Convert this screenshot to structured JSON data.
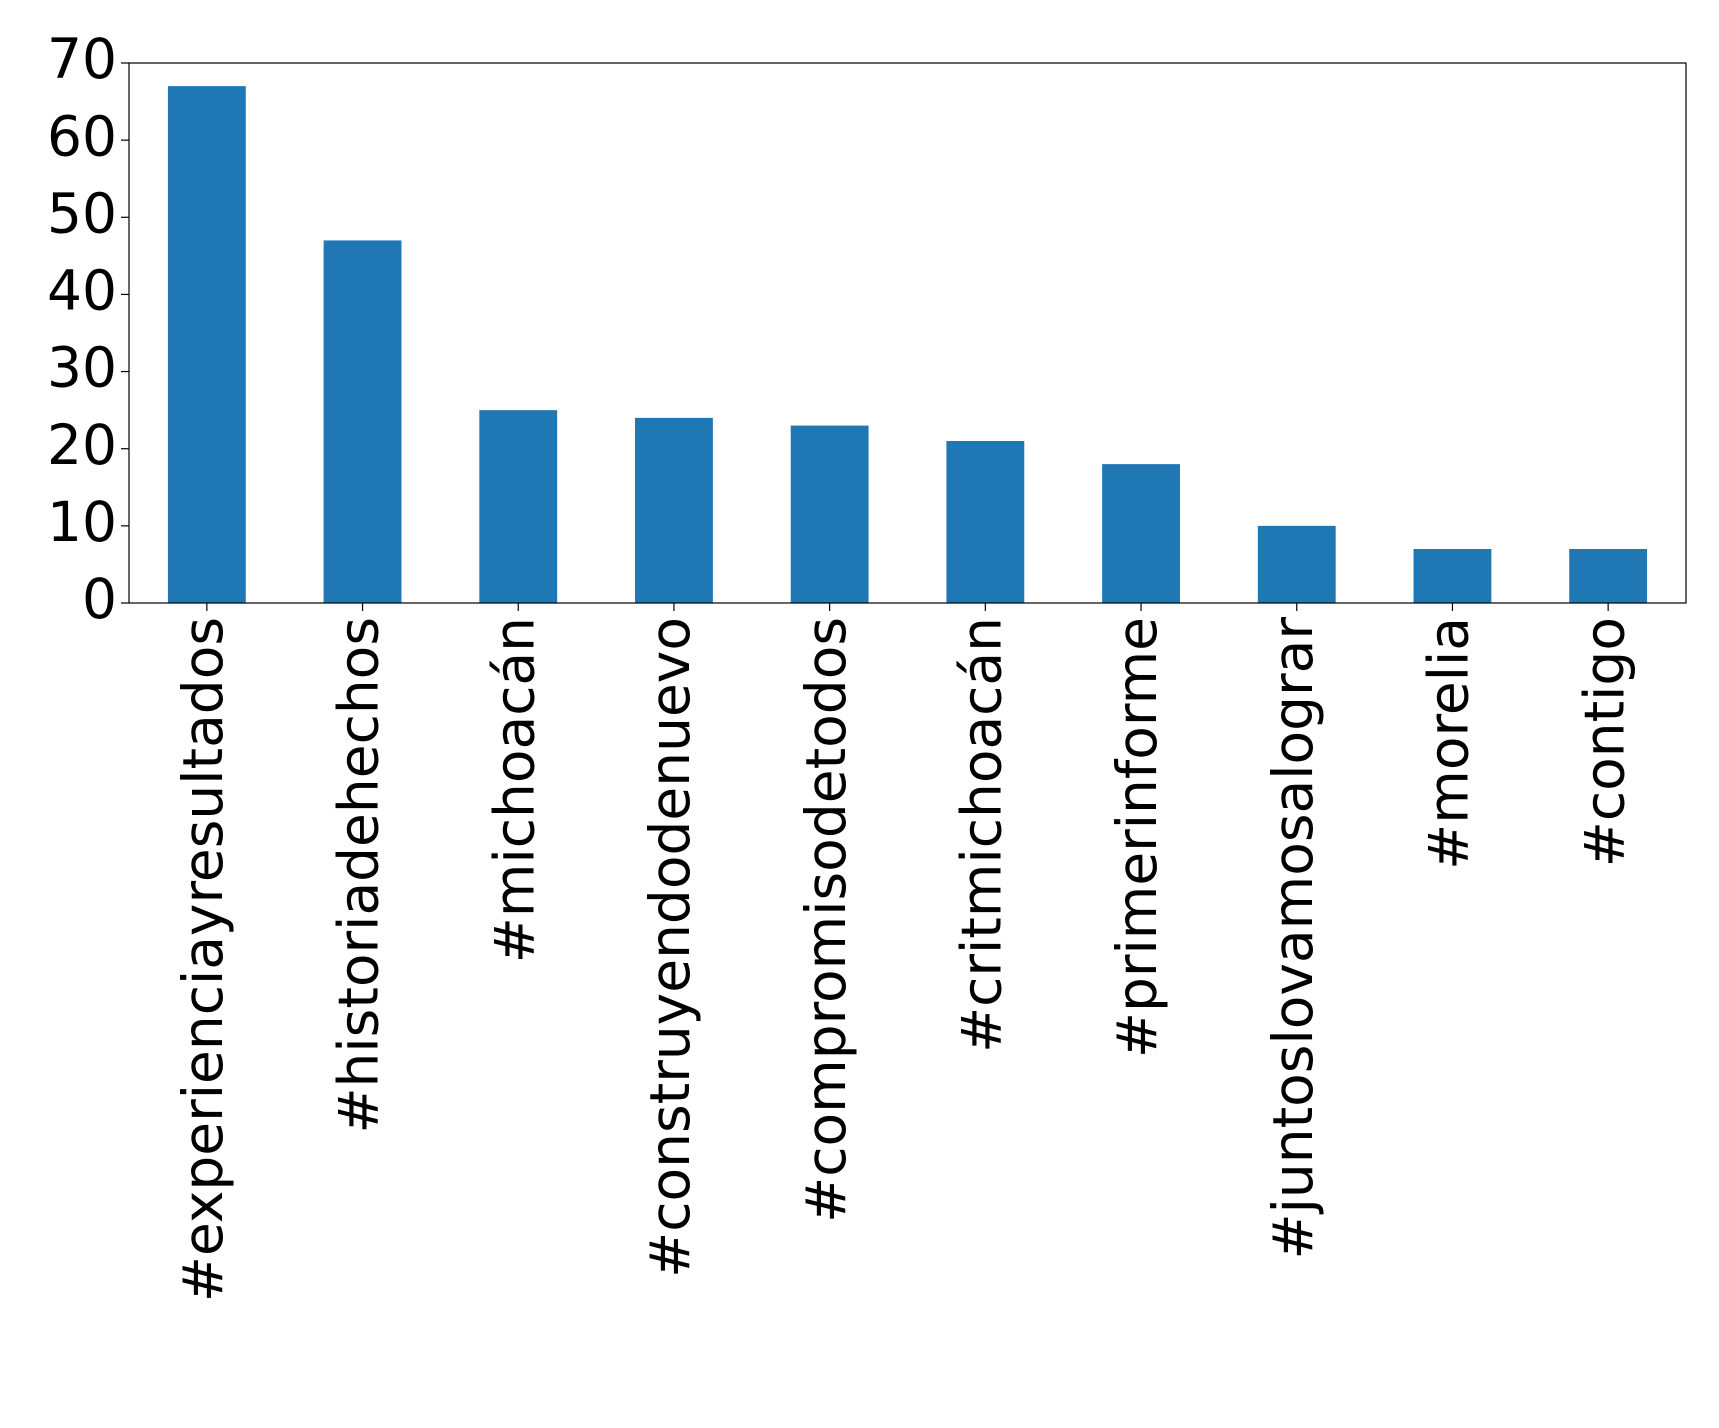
{
  "chart_data": {
    "type": "bar",
    "categories": [
      "#experienciayresultados",
      "#historiadehechos",
      "#michoacán",
      "#construyendodenuevo",
      "#compromisodetodos",
      "#critmichoacán",
      "#primerinforme",
      "#juntoslovamosalograr",
      "#morelia",
      "#contigo"
    ],
    "values": [
      67,
      47,
      25,
      24,
      23,
      21,
      18,
      10,
      7,
      7
    ],
    "color": "#1f77b4",
    "ylim": [
      0,
      70
    ],
    "yticks": [
      0,
      10,
      20,
      30,
      40,
      50,
      60,
      70
    ],
    "grid": false
  }
}
